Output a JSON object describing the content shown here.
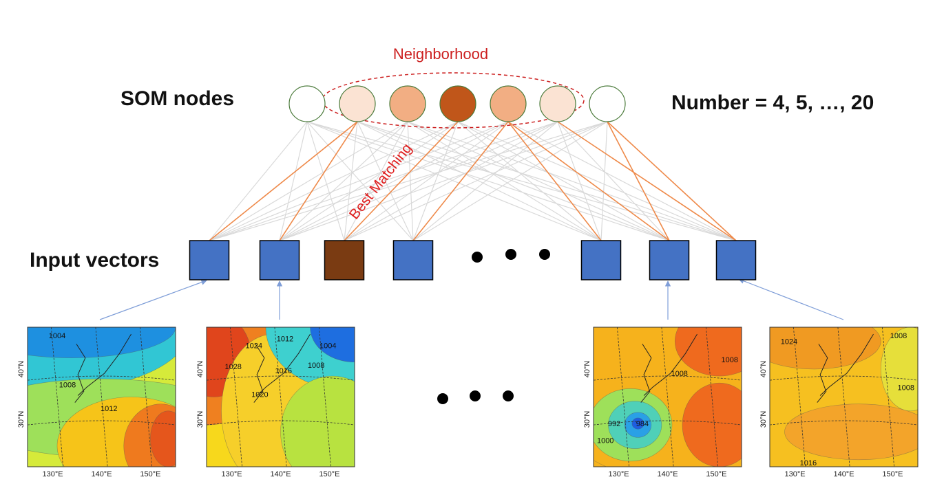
{
  "labels": {
    "som_nodes": "SOM nodes",
    "input_vectors": "Input vectors",
    "number": "Number = 4, 5, …, 20",
    "neighborhood": "Neighborhood",
    "best_matching": "Best Matching"
  },
  "colors": {
    "node_outline": "#4a7a3a",
    "node_fills": [
      "#ffffff",
      "#fbe3d3",
      "#f2ae83",
      "#c0561a",
      "#f2ae83",
      "#fbe3d3",
      "#ffffff"
    ],
    "input_fill": "#4472c4",
    "best_input_fill": "#7a3b12",
    "orange_link": "#ef8a4a",
    "gray_link": "#d9d9d9",
    "neighborhood_ring": "#cc1f1f",
    "arrow": "#7f9ed8"
  },
  "maps": [
    {
      "lat_ticks": [
        "40°N",
        "30°N"
      ],
      "lon_ticks": [
        "130°E",
        "140°E",
        "150°E"
      ],
      "contours": [
        "1004",
        "1008",
        "1012"
      ]
    },
    {
      "lat_ticks": [
        "40°N",
        "30°N"
      ],
      "lon_ticks": [
        "130°E",
        "140°E",
        "150°E"
      ],
      "contours": [
        "1028",
        "1024",
        "1012",
        "1016",
        "1020",
        "1004",
        "1008"
      ]
    },
    {
      "lat_ticks": [
        "40°N",
        "30°N"
      ],
      "lon_ticks": [
        "130°E",
        "140°E",
        "150°E"
      ],
      "contours": [
        "1008",
        "1008",
        "992",
        "984",
        "1000"
      ]
    },
    {
      "lat_ticks": [
        "40°N",
        "30°N"
      ],
      "lon_ticks": [
        "130°E",
        "140°E",
        "150°E"
      ],
      "contours": [
        "1024",
        "1008",
        "1008",
        "1016"
      ]
    }
  ]
}
